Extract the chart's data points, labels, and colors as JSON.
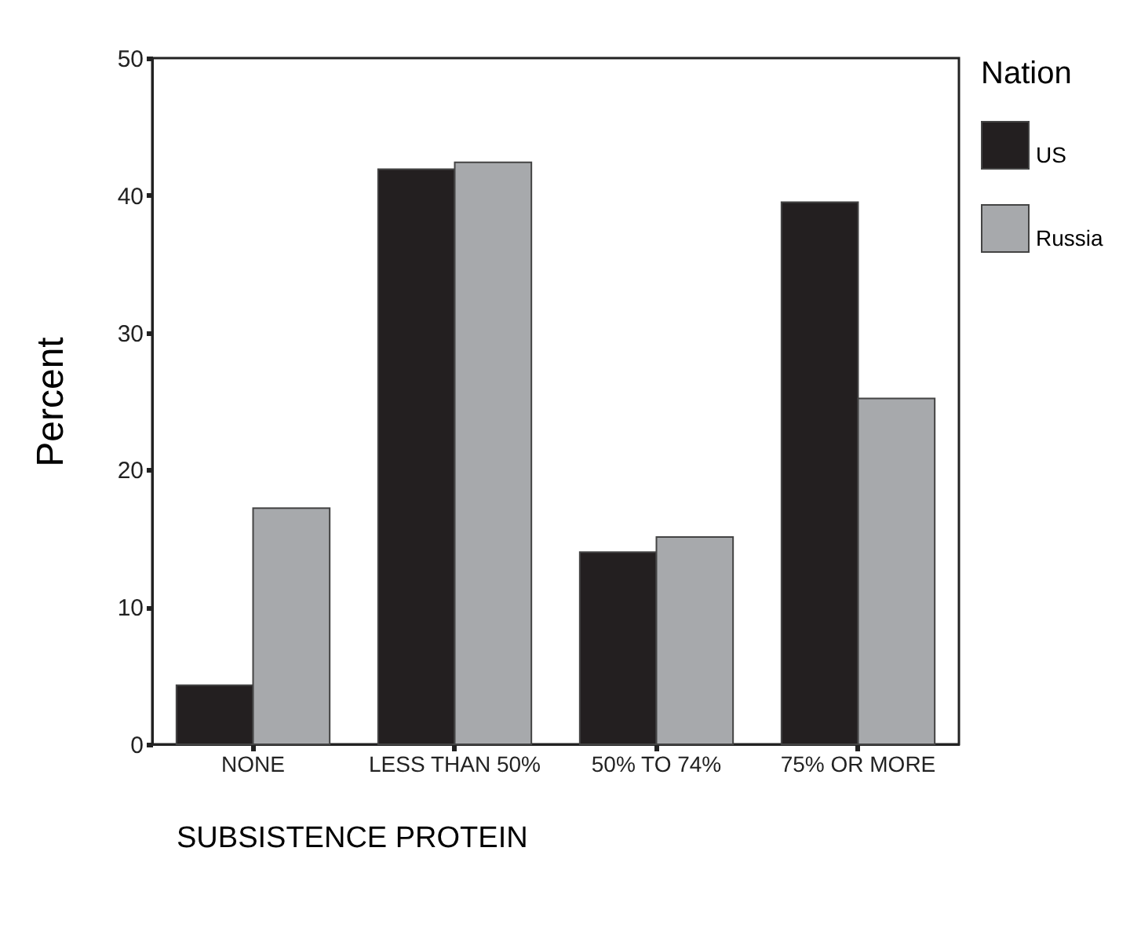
{
  "chart_data": {
    "type": "bar",
    "xlabel": "SUBSISTENCE PROTEIN",
    "ylabel": "Percent",
    "legend_title": "Nation",
    "categories": [
      "NONE",
      "LESS THAN 50%",
      "50% TO 74%",
      "75% OR MORE"
    ],
    "series": [
      {
        "name": "US",
        "color": "#231f20",
        "values": [
          4.3,
          41.9,
          14.0,
          39.5
        ]
      },
      {
        "name": "Russia",
        "color": "#a7a9ac",
        "values": [
          17.2,
          42.4,
          15.1,
          25.2
        ]
      }
    ],
    "ylim": [
      0,
      50
    ],
    "yticks": [
      0,
      10,
      20,
      30,
      40,
      50
    ],
    "grid": false,
    "legend": "right"
  }
}
